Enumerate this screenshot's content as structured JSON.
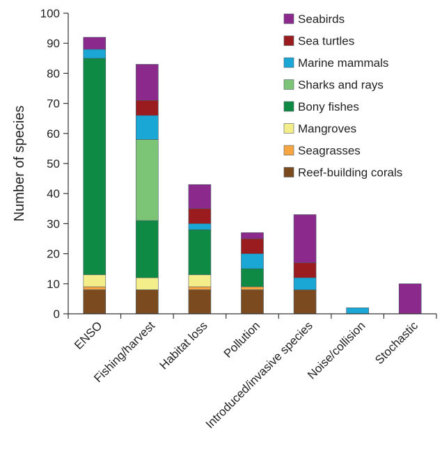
{
  "chart_data": {
    "type": "bar",
    "stacked": true,
    "title": "",
    "xlabel": "",
    "ylabel": "Number of species",
    "ylim": [
      0,
      100
    ],
    "yticks": [
      0,
      10,
      20,
      30,
      40,
      50,
      60,
      70,
      80,
      90,
      100
    ],
    "grid": false,
    "legend_position": "top-right",
    "categories": [
      "ENSO",
      "Fishing/harvest",
      "Habitat loss",
      "Pollution",
      "Introduced/invasive species",
      "Noise/collision",
      "Stochastic"
    ],
    "series": [
      {
        "name": "Reef-building corals",
        "color": "#7b4a1e",
        "values": [
          8,
          8,
          8,
          8,
          8,
          0,
          0
        ]
      },
      {
        "name": "Seagrasses",
        "color": "#f7a541",
        "values": [
          1,
          0,
          1,
          1,
          0,
          0,
          0
        ]
      },
      {
        "name": "Mangroves",
        "color": "#f4ee8a",
        "values": [
          4,
          4,
          4,
          0,
          0,
          0,
          0
        ]
      },
      {
        "name": "Bony fishes",
        "color": "#0e8a45",
        "values": [
          72,
          19,
          15,
          6,
          0,
          0,
          0
        ]
      },
      {
        "name": "Sharks and rays",
        "color": "#7cc576",
        "values": [
          0,
          27,
          0,
          0,
          0,
          0,
          0
        ]
      },
      {
        "name": "Marine mammals",
        "color": "#1aa7d6",
        "values": [
          3,
          8,
          2,
          5,
          4,
          2,
          0
        ]
      },
      {
        "name": "Sea turtles",
        "color": "#9b1c1f",
        "values": [
          0,
          5,
          5,
          5,
          5,
          0,
          0
        ]
      },
      {
        "name": "Seabirds",
        "color": "#8b2a8c",
        "values": [
          4,
          12,
          8,
          2,
          16,
          0,
          10
        ]
      }
    ]
  }
}
